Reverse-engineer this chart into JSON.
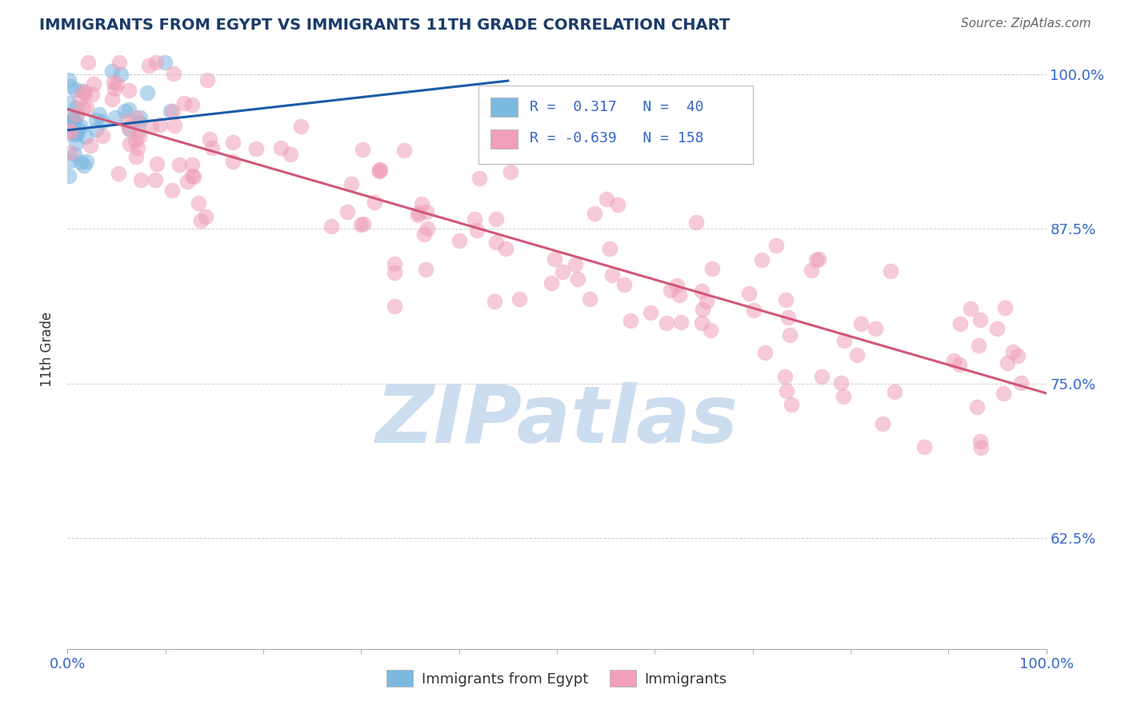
{
  "title": "IMMIGRANTS FROM EGYPT VS IMMIGRANTS 11TH GRADE CORRELATION CHART",
  "source": "Source: ZipAtlas.com",
  "ylabel": "11th Grade",
  "ylim": [
    0.535,
    1.02
  ],
  "xlim": [
    0.0,
    1.0
  ],
  "yticks": [
    0.625,
    0.75,
    0.875,
    1.0
  ],
  "ytick_labels_right": [
    "62.5%",
    "75.0%",
    "87.5%",
    "100.0%"
  ],
  "blue_R": 0.317,
  "blue_N": 40,
  "pink_R": -0.639,
  "pink_N": 158,
  "blue_color": "#7db8e0",
  "pink_color": "#f0a0b8",
  "blue_line_color": "#1a5ca8",
  "pink_line_color": "#d05878",
  "watermark_text": "ZIPatlas",
  "watermark_color": "#ccddf0",
  "legend_label_blue": "Immigrants from Egypt",
  "legend_label_pink": "Immigrants",
  "background_color": "#ffffff",
  "grid_color": "#cccccc",
  "title_color": "#1a3a6b",
  "source_color": "#666666",
  "axis_color": "#3366cc",
  "blue_trend_x": [
    0.0,
    0.45
  ],
  "blue_trend_y_start": 0.955,
  "blue_trend_y_end": 0.995,
  "pink_trend_x": [
    0.0,
    1.0
  ],
  "pink_trend_y_start": 0.972,
  "pink_trend_y_end": 0.742
}
